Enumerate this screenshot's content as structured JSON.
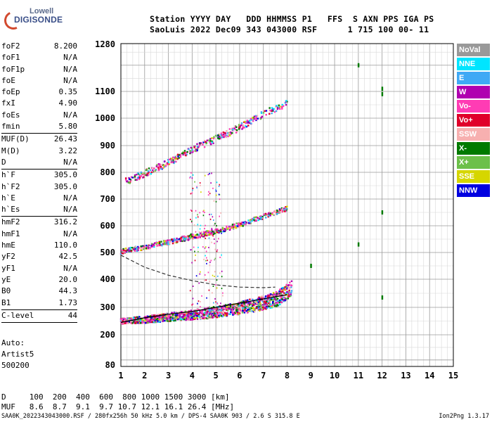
{
  "logo": {
    "line1": "Lowell",
    "line2": "DIGISONDE"
  },
  "header": {
    "line1": "Station YYYY DAY   DDD HHMMSS P1   FFS  S AXN PPS IGA PS",
    "line2": "SaoLuis 2022 Dec09 343 043000 RSF      1 715 100 00- 11"
  },
  "params": [
    {
      "label": "foF2",
      "value": "8.200"
    },
    {
      "label": "foF1",
      "value": "N/A"
    },
    {
      "label": "foF1p",
      "value": "N/A"
    },
    {
      "label": "foE",
      "value": "N/A"
    },
    {
      "label": "foEp",
      "value": "0.35"
    },
    {
      "label": "fxI",
      "value": "4.90"
    },
    {
      "label": "foEs",
      "value": "N/A"
    },
    {
      "label": "fmin",
      "value": "5.80",
      "sep": true
    },
    {
      "label": "MUF(D)",
      "value": "26.43"
    },
    {
      "label": "M(D)",
      "value": "3.22"
    },
    {
      "label": "D",
      "value": "N/A",
      "sep": true
    },
    {
      "label": "h`F",
      "value": "305.0"
    },
    {
      "label": "h`F2",
      "value": "305.0"
    },
    {
      "label": "h`E",
      "value": "N/A"
    },
    {
      "label": "h`Es",
      "value": "N/A",
      "sep": true
    },
    {
      "label": "hmF2",
      "value": "316.2"
    },
    {
      "label": "hmF1",
      "value": "N/A"
    },
    {
      "label": "hmE",
      "value": "110.0"
    },
    {
      "label": "yF2",
      "value": "42.5"
    },
    {
      "label": "yF1",
      "value": "N/A"
    },
    {
      "label": "yE",
      "value": "20.0"
    },
    {
      "label": "B0",
      "value": "44.3"
    },
    {
      "label": "B1",
      "value": "1.73",
      "sep": true
    },
    {
      "label": "C-level",
      "value": "44",
      "sep": true
    }
  ],
  "auto": {
    "line1": "Auto:",
    "line2": "Artist5",
    "line3": "500200"
  },
  "legend": [
    {
      "label": "NoVal",
      "color": "#999999"
    },
    {
      "label": "NNE",
      "color": "#00e5ff"
    },
    {
      "label": "E",
      "color": "#3fa9f5"
    },
    {
      "label": "W",
      "color": "#b000b0"
    },
    {
      "label": "Vo-",
      "color": "#ff3cb4"
    },
    {
      "label": "Vo+",
      "color": "#e0002a"
    },
    {
      "label": "SSW",
      "color": "#f7b0b0"
    },
    {
      "label": "X-",
      "color": "#007a00"
    },
    {
      "label": "X+",
      "color": "#6cc04a"
    },
    {
      "label": "SSE",
      "color": "#d6d600"
    },
    {
      "label": "NNW",
      "color": "#0000e0"
    }
  ],
  "muf_table": {
    "d_line": "D     100  200  400  600  800 1000 1500 3000 [km]",
    "muf_line": "MUF   8.6  8.7  9.1  9.7 10.7 12.1 16.1 26.4 [MHz]"
  },
  "footer": {
    "left": "SAA0K_2022343043000.RSF / 280fx256h 50 kHz 5.0 km / DPS-4 SAA0K 903 / 2.6 S 315.8 E",
    "right": "Ion2Png 1.3.17"
  },
  "chart_data": {
    "type": "scatter",
    "x_ticks": [
      1,
      2,
      3,
      4,
      5,
      6,
      7,
      8,
      9,
      10,
      11,
      12,
      13,
      14,
      15
    ],
    "y_ticks": [
      80,
      200,
      300,
      400,
      500,
      600,
      700,
      800,
      900,
      1000,
      1100,
      1280
    ],
    "xlim": [
      1,
      15
    ],
    "grid": true,
    "traces": [
      {
        "name": "h'F2 O-trace",
        "x": [
          1.0,
          2.0,
          3.0,
          4.0,
          5.0,
          6.0,
          7.0,
          7.6,
          8.0,
          8.2
        ],
        "y": [
          245,
          250,
          258,
          265,
          275,
          288,
          305,
          320,
          345,
          360
        ]
      },
      {
        "name": "2nd hop",
        "x": [
          1.0,
          2.0,
          3.0,
          4.0,
          5.0,
          6.0,
          7.0,
          8.0
        ],
        "y": [
          500,
          515,
          535,
          555,
          575,
          600,
          630,
          660
        ]
      },
      {
        "name": "3rd hop",
        "x": [
          1.2,
          2.0,
          3.0,
          4.0,
          5.0,
          6.0,
          7.0,
          8.0
        ],
        "y": [
          760,
          790,
          830,
          880,
          920,
          960,
          1010,
          1050
        ]
      }
    ],
    "profile_line": {
      "x": [
        1.0,
        2.0,
        3.0,
        4.0,
        5.0,
        6.0,
        7.0,
        8.0
      ],
      "y": [
        245,
        262,
        275,
        285,
        300,
        315,
        330,
        345
      ]
    },
    "dashed_line": {
      "x": [
        1.0,
        2.0,
        3.0,
        4.0,
        5.0,
        6.0,
        7.0,
        7.5
      ],
      "y": [
        490,
        445,
        415,
        395,
        380,
        372,
        370,
        372
      ]
    }
  }
}
